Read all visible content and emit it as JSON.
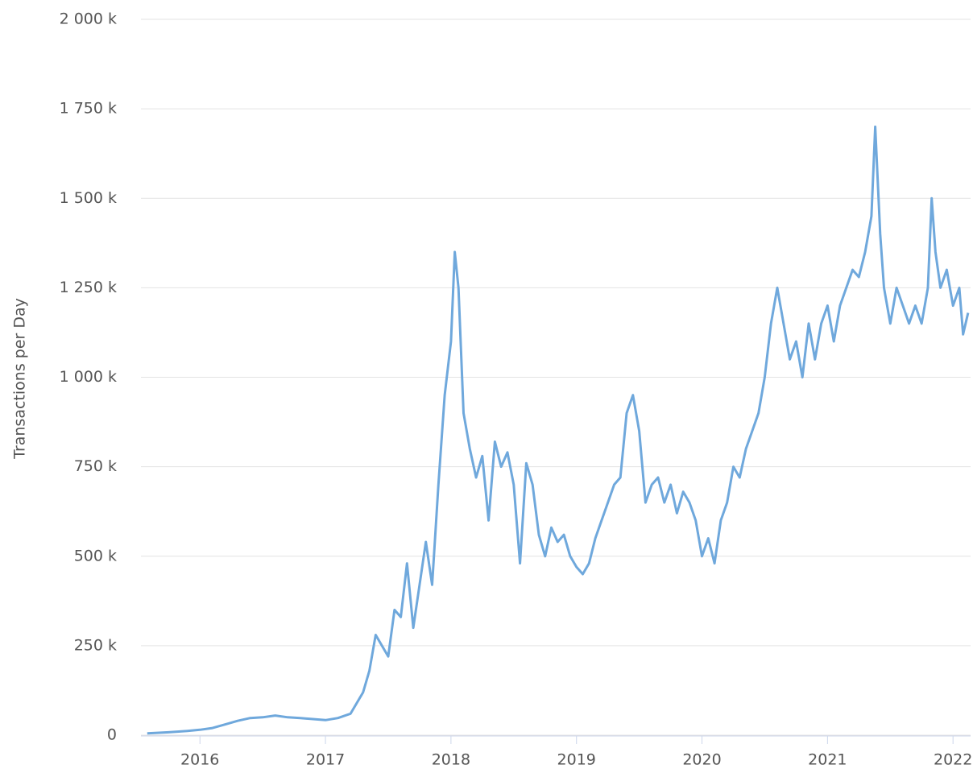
{
  "chart_data": {
    "type": "line",
    "y_label": "Transactions per Day",
    "x": [
      2015.58,
      2015.75,
      2015.9,
      2016.0,
      2016.1,
      2016.2,
      2016.3,
      2016.4,
      2016.5,
      2016.6,
      2016.7,
      2016.8,
      2016.9,
      2017.0,
      2017.1,
      2017.2,
      2017.25,
      2017.3,
      2017.35,
      2017.4,
      2017.45,
      2017.5,
      2017.55,
      2017.6,
      2017.65,
      2017.7,
      2017.75,
      2017.8,
      2017.85,
      2017.9,
      2017.95,
      2018.0,
      2018.03,
      2018.06,
      2018.1,
      2018.15,
      2018.2,
      2018.25,
      2018.3,
      2018.35,
      2018.4,
      2018.45,
      2018.5,
      2018.55,
      2018.6,
      2018.65,
      2018.7,
      2018.75,
      2018.8,
      2018.85,
      2018.9,
      2018.95,
      2019.0,
      2019.05,
      2019.1,
      2019.15,
      2019.2,
      2019.25,
      2019.3,
      2019.35,
      2019.4,
      2019.45,
      2019.5,
      2019.55,
      2019.6,
      2019.65,
      2019.7,
      2019.75,
      2019.8,
      2019.85,
      2019.9,
      2019.95,
      2020.0,
      2020.05,
      2020.1,
      2020.15,
      2020.2,
      2020.25,
      2020.3,
      2020.35,
      2020.4,
      2020.45,
      2020.5,
      2020.55,
      2020.6,
      2020.65,
      2020.7,
      2020.75,
      2020.8,
      2020.85,
      2020.9,
      2020.95,
      2021.0,
      2021.05,
      2021.1,
      2021.15,
      2021.2,
      2021.25,
      2021.3,
      2021.35,
      2021.38,
      2021.42,
      2021.45,
      2021.5,
      2021.55,
      2021.6,
      2021.65,
      2021.7,
      2021.75,
      2021.8,
      2021.83,
      2021.86,
      2021.9,
      2021.95,
      2022.0,
      2022.05,
      2022.08,
      2022.12
    ],
    "series": [
      {
        "name": "Transactions per Day",
        "color": "#6fa8dc",
        "values": [
          5000,
          8000,
          12000,
          15000,
          20000,
          30000,
          40000,
          48000,
          50000,
          55000,
          50000,
          48000,
          45000,
          42000,
          48000,
          60000,
          90000,
          120000,
          180000,
          280000,
          250000,
          220000,
          350000,
          330000,
          480000,
          300000,
          420000,
          540000,
          420000,
          700000,
          950000,
          1100000,
          1350000,
          1250000,
          900000,
          800000,
          720000,
          780000,
          600000,
          820000,
          750000,
          790000,
          700000,
          480000,
          760000,
          700000,
          560000,
          500000,
          580000,
          540000,
          560000,
          500000,
          470000,
          450000,
          480000,
          550000,
          600000,
          650000,
          700000,
          720000,
          900000,
          950000,
          850000,
          650000,
          700000,
          720000,
          650000,
          700000,
          620000,
          680000,
          650000,
          600000,
          500000,
          550000,
          480000,
          600000,
          650000,
          750000,
          720000,
          800000,
          850000,
          900000,
          1000000,
          1150000,
          1250000,
          1150000,
          1050000,
          1100000,
          1000000,
          1150000,
          1050000,
          1150000,
          1200000,
          1100000,
          1200000,
          1250000,
          1300000,
          1280000,
          1350000,
          1450000,
          1700000,
          1400000,
          1250000,
          1150000,
          1250000,
          1200000,
          1150000,
          1200000,
          1150000,
          1250000,
          1500000,
          1350000,
          1250000,
          1300000,
          1200000,
          1250000,
          1120000,
          1180000
        ]
      }
    ],
    "xlim": [
      2015.53,
      2022.14
    ],
    "xticks": [
      2016,
      2017,
      2018,
      2019,
      2020,
      2021,
      2022
    ],
    "ylim": [
      0,
      2000000
    ],
    "yticks": [
      {
        "value": 0,
        "label": "0"
      },
      {
        "value": 250000,
        "label": "250 k"
      },
      {
        "value": 500000,
        "label": "500 k"
      },
      {
        "value": 750000,
        "label": "750 k"
      },
      {
        "value": 1000000,
        "label": "1 000 k"
      },
      {
        "value": 1250000,
        "label": "1 250 k"
      },
      {
        "value": 1500000,
        "label": "1 500 k"
      },
      {
        "value": 1750000,
        "label": "1 750 k"
      },
      {
        "value": 2000000,
        "label": "2 000 k"
      }
    ],
    "grid": true
  }
}
